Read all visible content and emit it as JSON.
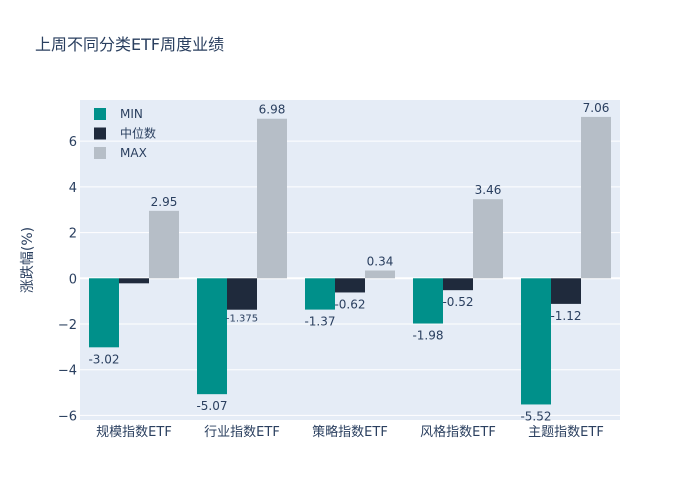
{
  "chart_data": {
    "type": "bar",
    "title": "上周不同分类ETF周度业绩",
    "ylabel": "涨跌幅(%)",
    "xlabel": "",
    "categories": [
      "规模指数ETF",
      "行业指数ETF",
      "策略指数ETF",
      "风格指数ETF",
      "主题指数ETF"
    ],
    "series": [
      {
        "name": "MIN",
        "color": "#00908a",
        "values": [
          -3.02,
          -5.07,
          -1.37,
          -1.98,
          -5.52
        ],
        "labels": [
          "-3.02",
          "-5.07",
          "-1.37",
          "-1.98",
          "-5.52"
        ]
      },
      {
        "name": "中位数",
        "color": "#1f2a3c",
        "values": [
          -0.22,
          -1.375,
          -0.62,
          -0.52,
          -1.12
        ],
        "labels": [
          "",
          "-1.375",
          "-0.62",
          "-0.52",
          "-1.12"
        ]
      },
      {
        "name": "MAX",
        "color": "#b6bec7",
        "values": [
          2.95,
          6.98,
          0.34,
          3.46,
          7.06
        ],
        "labels": [
          "2.95",
          "6.98",
          "0.34",
          "3.46",
          "7.06"
        ]
      }
    ],
    "yticks": [
      -6,
      -4,
      -2,
      0,
      2,
      4,
      6
    ],
    "ylim": [
      -6.2,
      7.8
    ],
    "grid": true,
    "legend_position": "top-left",
    "plot_background": "#e5ecf6"
  }
}
